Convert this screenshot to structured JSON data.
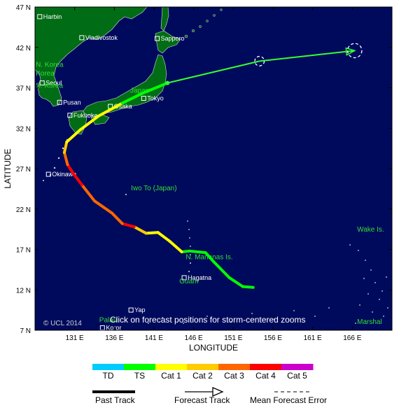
{
  "map": {
    "lon_range": [
      126,
      171
    ],
    "lat_range": [
      7,
      47
    ],
    "ocean_color": "#000a5c",
    "land_color": "#006c16",
    "frame_color": "#000000",
    "x_axis_title": "LONGITUDE",
    "y_axis_title": "LATITUDE",
    "x_ticks": [
      {
        "value": 131,
        "label": "131 E"
      },
      {
        "value": 136,
        "label": "136 E"
      },
      {
        "value": 141,
        "label": "141 E"
      },
      {
        "value": 146,
        "label": "146 E"
      },
      {
        "value": 151,
        "label": "151 E"
      },
      {
        "value": 156,
        "label": "156 E"
      },
      {
        "value": 161,
        "label": "161 E"
      },
      {
        "value": 166,
        "label": "166 E"
      }
    ],
    "y_ticks": [
      {
        "value": 47,
        "label": "47 N"
      },
      {
        "value": 42,
        "label": "42 N"
      },
      {
        "value": 37,
        "label": "37 N"
      },
      {
        "value": 32,
        "label": "32 N"
      },
      {
        "value": 27,
        "label": "27 N"
      },
      {
        "value": 22,
        "label": "22 N"
      },
      {
        "value": 17,
        "label": "17 N"
      },
      {
        "value": 12,
        "label": "12 N"
      },
      {
        "value": 7,
        "label": "7 N"
      }
    ],
    "notice": "Click on forecast positions for storm-centered zooms",
    "credit": "© UCL 2014"
  },
  "cities": [
    {
      "name": "Harbin",
      "lon": 126.6,
      "lat": 45.8
    },
    {
      "name": "Vladivostok",
      "lon": 131.9,
      "lat": 43.2
    },
    {
      "name": "Sapporo",
      "lon": 141.4,
      "lat": 43.1
    },
    {
      "name": "Seoul",
      "lon": 126.9,
      "lat": 37.6
    },
    {
      "name": "Pusan",
      "lon": 129.1,
      "lat": 35.2
    },
    {
      "name": "Osaka",
      "lon": 135.5,
      "lat": 34.7
    },
    {
      "name": "Tokyo",
      "lon": 139.7,
      "lat": 35.7
    },
    {
      "name": "Fukuoka",
      "lon": 130.4,
      "lat": 33.6
    },
    {
      "name": "Okinawa",
      "lon": 127.7,
      "lat": 26.3
    },
    {
      "name": "Hagatna",
      "lon": 144.8,
      "lat": 13.5
    },
    {
      "name": "Yap",
      "lon": 138.1,
      "lat": 9.5
    },
    {
      "name": "Koror",
      "lon": 134.5,
      "lat": 7.3
    }
  ],
  "regions": [
    {
      "name": "Korea",
      "lon": 126.1,
      "lat": 38.5
    },
    {
      "name": "N. Korea",
      "lon": 126.1,
      "lat": 39.6
    },
    {
      "name": "S. Korea",
      "lon": 126.1,
      "lat": 37.0
    },
    {
      "name": "Japan",
      "lon": 138.0,
      "lat": 36.4
    },
    {
      "name": "Iwo To (Japan)",
      "lon": 138.1,
      "lat": 24.3
    },
    {
      "name": "N. Marianas Is.",
      "lon": 145.0,
      "lat": 15.8
    },
    {
      "name": "Guam",
      "lon": 144.2,
      "lat": 12.8
    },
    {
      "name": "Wake Is.",
      "lon": 166.6,
      "lat": 19.2
    },
    {
      "name": "Palau",
      "lon": 134.1,
      "lat": 8.0
    },
    {
      "name": "Marshal",
      "lon": 166.6,
      "lat": 7.8
    }
  ],
  "past_track": [
    {
      "lon": 153.5,
      "lat": 12.3,
      "cat": "TD"
    },
    {
      "lon": 152.2,
      "lat": 12.4,
      "cat": "TS"
    },
    {
      "lon": 150.5,
      "lat": 13.5,
      "cat": "TS"
    },
    {
      "lon": 148.5,
      "lat": 15.5,
      "cat": "TS"
    },
    {
      "lon": 147.5,
      "lat": 16.6,
      "cat": "TS"
    },
    {
      "lon": 145.5,
      "lat": 16.8,
      "cat": "TS"
    },
    {
      "lon": 144.5,
      "lat": 16.7,
      "cat": "TS"
    },
    {
      "lon": 143.0,
      "lat": 18.0,
      "cat": "Cat 1"
    },
    {
      "lon": 141.5,
      "lat": 19.1,
      "cat": "Cat 1"
    },
    {
      "lon": 140.0,
      "lat": 19.0,
      "cat": "Cat 1"
    },
    {
      "lon": 138.5,
      "lat": 19.8,
      "cat": "Cat 2"
    },
    {
      "lon": 137.0,
      "lat": 20.2,
      "cat": "Cat 4"
    },
    {
      "lon": 135.7,
      "lat": 21.5,
      "cat": "Cat 3"
    },
    {
      "lon": 133.5,
      "lat": 23.0,
      "cat": "Cat 3"
    },
    {
      "lon": 131.9,
      "lat": 25.0,
      "cat": "Cat 3"
    },
    {
      "lon": 130.9,
      "lat": 26.3,
      "cat": "Cat 4"
    },
    {
      "lon": 130.1,
      "lat": 27.5,
      "cat": "Cat 4"
    },
    {
      "lon": 129.7,
      "lat": 29.0,
      "cat": "Cat 3"
    },
    {
      "lon": 130.0,
      "lat": 30.3,
      "cat": "Cat 2"
    },
    {
      "lon": 131.7,
      "lat": 31.8,
      "cat": "Cat 1"
    },
    {
      "lon": 134.0,
      "lat": 33.5,
      "cat": "Cat 1"
    },
    {
      "lon": 137.0,
      "lat": 35.1,
      "cat": "Cat 1"
    },
    {
      "lon": 139.5,
      "lat": 36.3,
      "cat": "TS"
    },
    {
      "lon": 142.7,
      "lat": 37.6,
      "cat": "TS"
    }
  ],
  "forecast_track": [
    {
      "lon": 142.7,
      "lat": 37.6
    },
    {
      "lon": 154.3,
      "lat": 40.3
    },
    {
      "lon": 166.3,
      "lat": 41.6
    }
  ],
  "forecast_positions": [
    {
      "lon": 154.3,
      "lat": 40.3,
      "radius_deg": 0.6
    },
    {
      "lon": 166.3,
      "lat": 41.6,
      "radius_deg": 0.9
    }
  ],
  "legend": {
    "categories": [
      {
        "label": "TD",
        "color": "#00ccff"
      },
      {
        "label": "TS",
        "color": "#00ff00"
      },
      {
        "label": "Cat 1",
        "color": "#ffff00"
      },
      {
        "label": "Cat 2",
        "color": "#ffcc00"
      },
      {
        "label": "Cat 3",
        "color": "#ff6600"
      },
      {
        "label": "Cat 4",
        "color": "#ff0000"
      },
      {
        "label": "Cat 5",
        "color": "#cc00cc"
      }
    ],
    "past_track_label": "Past Track",
    "forecast_track_label": "Forecast Track",
    "error_label": "Mean Forecast Error"
  }
}
